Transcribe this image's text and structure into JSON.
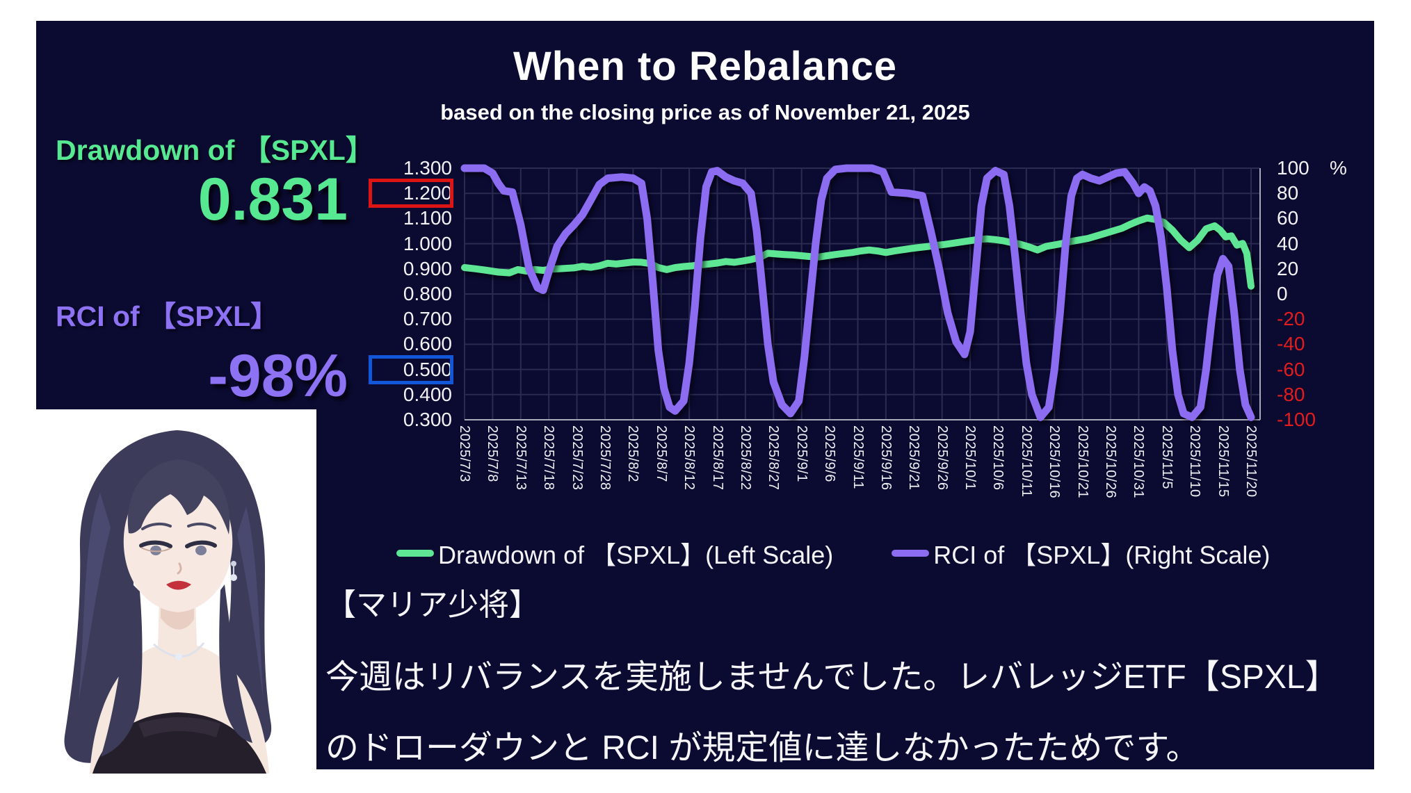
{
  "header": {
    "title": "When to Rebalance",
    "subtitle": "based on the closing price as of November 21, 2025"
  },
  "stats": {
    "drawdown": {
      "label": "Drawdown of 【SPXL】",
      "value": "0.831"
    },
    "rci": {
      "label": "RCI of 【SPXL】",
      "value": "-98%"
    }
  },
  "commentary": {
    "line1": "【マリア少将】",
    "line2": "今週はリバランスを実施しませんでした。レバレッジETF【SPXL】",
    "line3": "のドローダウンと RCI が規定値に達しなかったためです。"
  },
  "colors": {
    "panel_bg": "#0b0a31",
    "accent_green": "#57e892",
    "accent_purple": "#8d72f3",
    "line_green": "#5fe694",
    "line_purple": "#8c6df1",
    "negative_red": "#e11d1d",
    "highlight_red_box": "#dc1414",
    "highlight_blue_box": "#1256d9",
    "grid": "#2b2b50",
    "axis_line": "#a9aab8"
  },
  "chart_data": {
    "type": "line",
    "title": "When to Rebalance",
    "x_tick_labels": [
      "2025/7/3",
      "2025/7/8",
      "2025/7/13",
      "2025/7/18",
      "2025/7/23",
      "2025/7/28",
      "2025/8/2",
      "2025/8/7",
      "2025/8/12",
      "2025/8/17",
      "2025/8/22",
      "2025/8/27",
      "2025/9/1",
      "2025/9/6",
      "2025/9/11",
      "2025/9/16",
      "2025/9/21",
      "2025/9/26",
      "2025/10/1",
      "2025/10/6",
      "2025/10/11",
      "2025/10/16",
      "2025/10/21",
      "2025/10/26",
      "2025/10/31",
      "2025/11/5",
      "2025/11/10",
      "2025/11/15",
      "2025/11/20"
    ],
    "left_axis": {
      "min": 0.3,
      "max": 1.3,
      "tick_labels": [
        "1.300",
        "1.200",
        "1.100",
        "1.000",
        "0.900",
        "0.800",
        "0.700",
        "0.600",
        "0.500",
        "0.400",
        "0.300"
      ],
      "highlight_red": "1.200",
      "highlight_blue": "0.500"
    },
    "right_axis": {
      "min": -100,
      "max": 100,
      "unit": "%",
      "tick_labels": [
        "100",
        "80",
        "60",
        "40",
        "20",
        "0",
        "-20",
        "-40",
        "-60",
        "-80",
        "-100"
      ]
    },
    "grid": true,
    "legend_position": "bottom",
    "series": [
      {
        "name": "Drawdown of 【SPXL】(Left Scale)",
        "axis": "left",
        "color": "#5fe694",
        "points": [
          [
            0,
            0.905
          ],
          [
            0.4,
            0.9
          ],
          [
            0.8,
            0.894
          ],
          [
            1.2,
            0.887
          ],
          [
            1.6,
            0.884
          ],
          [
            1.9,
            0.897
          ],
          [
            2.2,
            0.891
          ],
          [
            2.5,
            0.897
          ],
          [
            2.8,
            0.894
          ],
          [
            3.1,
            0.899
          ],
          [
            3.5,
            0.901
          ],
          [
            3.9,
            0.904
          ],
          [
            4.2,
            0.91
          ],
          [
            4.5,
            0.906
          ],
          [
            4.8,
            0.912
          ],
          [
            5.1,
            0.922
          ],
          [
            5.4,
            0.919
          ],
          [
            5.7,
            0.923
          ],
          [
            6.0,
            0.927
          ],
          [
            6.3,
            0.926
          ],
          [
            6.6,
            0.921
          ],
          [
            6.9,
            0.905
          ],
          [
            7.2,
            0.897
          ],
          [
            7.5,
            0.905
          ],
          [
            7.8,
            0.909
          ],
          [
            8.1,
            0.912
          ],
          [
            8.4,
            0.916
          ],
          [
            8.7,
            0.919
          ],
          [
            9.0,
            0.923
          ],
          [
            9.3,
            0.929
          ],
          [
            9.6,
            0.926
          ],
          [
            9.9,
            0.931
          ],
          [
            10.2,
            0.937
          ],
          [
            10.5,
            0.945
          ],
          [
            10.8,
            0.962
          ],
          [
            11.1,
            0.959
          ],
          [
            11.4,
            0.957
          ],
          [
            11.7,
            0.955
          ],
          [
            12.0,
            0.952
          ],
          [
            12.3,
            0.949
          ],
          [
            12.6,
            0.947
          ],
          [
            12.9,
            0.952
          ],
          [
            13.2,
            0.957
          ],
          [
            13.5,
            0.961
          ],
          [
            13.8,
            0.965
          ],
          [
            14.1,
            0.971
          ],
          [
            14.4,
            0.975
          ],
          [
            14.7,
            0.971
          ],
          [
            15.0,
            0.965
          ],
          [
            15.3,
            0.971
          ],
          [
            15.6,
            0.976
          ],
          [
            15.9,
            0.981
          ],
          [
            16.2,
            0.985
          ],
          [
            16.5,
            0.989
          ],
          [
            16.8,
            0.993
          ],
          [
            17.1,
            0.997
          ],
          [
            17.4,
            1.002
          ],
          [
            17.7,
            1.007
          ],
          [
            18.0,
            1.012
          ],
          [
            18.3,
            1.017
          ],
          [
            18.6,
            1.019
          ],
          [
            18.9,
            1.016
          ],
          [
            19.2,
            1.011
          ],
          [
            19.5,
            1.004
          ],
          [
            19.8,
            0.997
          ],
          [
            20.1,
            0.987
          ],
          [
            20.4,
            0.975
          ],
          [
            20.7,
            0.989
          ],
          [
            21.0,
            0.995
          ],
          [
            21.3,
            1.001
          ],
          [
            21.6,
            1.009
          ],
          [
            21.9,
            1.015
          ],
          [
            22.2,
            1.021
          ],
          [
            22.5,
            1.031
          ],
          [
            22.8,
            1.041
          ],
          [
            23.1,
            1.051
          ],
          [
            23.4,
            1.061
          ],
          [
            23.7,
            1.077
          ],
          [
            24.0,
            1.091
          ],
          [
            24.3,
            1.102
          ],
          [
            24.6,
            1.096
          ],
          [
            24.9,
            1.084
          ],
          [
            25.2,
            1.054
          ],
          [
            25.5,
            1.014
          ],
          [
            25.8,
            0.984
          ],
          [
            26.1,
            1.014
          ],
          [
            26.4,
            1.059
          ],
          [
            26.7,
            1.071
          ],
          [
            26.9,
            1.054
          ],
          [
            27.1,
            1.027
          ],
          [
            27.3,
            1.031
          ],
          [
            27.5,
            0.994
          ],
          [
            27.7,
            1.001
          ],
          [
            27.85,
            0.961
          ],
          [
            28,
            0.831
          ]
        ]
      },
      {
        "name": "RCI of 【SPXL】(Right Scale)",
        "axis": "right",
        "color": "#8c6df1",
        "points": [
          [
            0,
            100
          ],
          [
            0.7,
            100
          ],
          [
            1.0,
            96
          ],
          [
            1.2,
            88
          ],
          [
            1.4,
            82
          ],
          [
            1.7,
            81
          ],
          [
            2.0,
            55
          ],
          [
            2.3,
            20
          ],
          [
            2.6,
            5
          ],
          [
            2.8,
            3
          ],
          [
            3.0,
            18
          ],
          [
            3.3,
            38
          ],
          [
            3.6,
            48
          ],
          [
            3.9,
            55
          ],
          [
            4.2,
            63
          ],
          [
            4.5,
            75
          ],
          [
            4.8,
            87
          ],
          [
            5.1,
            92
          ],
          [
            5.6,
            93
          ],
          [
            6.0,
            92
          ],
          [
            6.3,
            88
          ],
          [
            6.5,
            60
          ],
          [
            6.7,
            10
          ],
          [
            6.9,
            -45
          ],
          [
            7.1,
            -75
          ],
          [
            7.3,
            -90
          ],
          [
            7.5,
            -93
          ],
          [
            7.8,
            -85
          ],
          [
            8.0,
            -55
          ],
          [
            8.2,
            -10
          ],
          [
            8.4,
            45
          ],
          [
            8.6,
            85
          ],
          [
            8.8,
            97
          ],
          [
            9.0,
            98
          ],
          [
            9.3,
            93
          ],
          [
            9.6,
            90
          ],
          [
            9.9,
            88
          ],
          [
            10.2,
            80
          ],
          [
            10.4,
            50
          ],
          [
            10.6,
            5
          ],
          [
            10.8,
            -40
          ],
          [
            11.0,
            -70
          ],
          [
            11.3,
            -88
          ],
          [
            11.6,
            -95
          ],
          [
            11.9,
            -85
          ],
          [
            12.1,
            -50
          ],
          [
            12.3,
            -5
          ],
          [
            12.5,
            40
          ],
          [
            12.7,
            75
          ],
          [
            12.9,
            92
          ],
          [
            13.2,
            99
          ],
          [
            13.6,
            100
          ],
          [
            14.0,
            100
          ],
          [
            14.5,
            100
          ],
          [
            14.9,
            97
          ],
          [
            15.2,
            81
          ],
          [
            15.8,
            80
          ],
          [
            16.3,
            78
          ],
          [
            16.6,
            50
          ],
          [
            16.9,
            20
          ],
          [
            17.2,
            -15
          ],
          [
            17.5,
            -38
          ],
          [
            17.8,
            -48
          ],
          [
            18.0,
            -30
          ],
          [
            18.2,
            20
          ],
          [
            18.4,
            70
          ],
          [
            18.6,
            92
          ],
          [
            18.9,
            98
          ],
          [
            19.2,
            95
          ],
          [
            19.4,
            70
          ],
          [
            19.6,
            30
          ],
          [
            19.8,
            -15
          ],
          [
            20.0,
            -55
          ],
          [
            20.2,
            -80
          ],
          [
            20.5,
            -98
          ],
          [
            20.8,
            -90
          ],
          [
            21.0,
            -60
          ],
          [
            21.2,
            -15
          ],
          [
            21.4,
            40
          ],
          [
            21.6,
            78
          ],
          [
            21.8,
            92
          ],
          [
            22.0,
            95
          ],
          [
            22.3,
            92
          ],
          [
            22.6,
            90
          ],
          [
            22.9,
            93
          ],
          [
            23.2,
            96
          ],
          [
            23.5,
            97
          ],
          [
            23.8,
            88
          ],
          [
            24.0,
            80
          ],
          [
            24.2,
            85
          ],
          [
            24.4,
            82
          ],
          [
            24.6,
            70
          ],
          [
            24.8,
            45
          ],
          [
            25.0,
            5
          ],
          [
            25.2,
            -45
          ],
          [
            25.4,
            -80
          ],
          [
            25.6,
            -95
          ],
          [
            25.9,
            -98
          ],
          [
            26.2,
            -90
          ],
          [
            26.4,
            -60
          ],
          [
            26.6,
            -20
          ],
          [
            26.8,
            15
          ],
          [
            27.0,
            28
          ],
          [
            27.2,
            22
          ],
          [
            27.4,
            -15
          ],
          [
            27.6,
            -60
          ],
          [
            27.8,
            -88
          ],
          [
            28,
            -98
          ]
        ]
      }
    ]
  }
}
